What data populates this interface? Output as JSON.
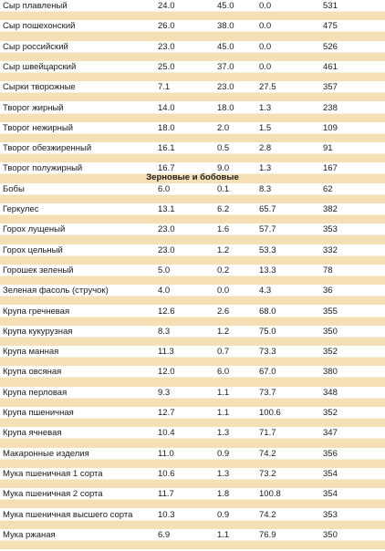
{
  "rows": [
    [
      "Сыр плавленый",
      "24.0",
      "45.0",
      "0.0",
      "531"
    ],
    [
      "Сыр пошехонский",
      "26.0",
      "38.0",
      "0.0",
      "475"
    ],
    [
      "Сыр российский",
      "23.0",
      "45.0",
      "0.0",
      "526"
    ],
    [
      "Сыр швейцарский",
      "25.0",
      "37.0",
      "0.0",
      "461"
    ],
    [
      "Сырки творожные",
      "7.1",
      "23.0",
      "27.5",
      "357"
    ],
    [
      "Творог жирный",
      "14.0",
      "18.0",
      "1.3",
      "238"
    ],
    [
      "Творог нежирный",
      "18.0",
      "2.0",
      "1.5",
      "109"
    ],
    [
      "Творог обезжиренный",
      "16.1",
      "0.5",
      "2.8",
      "91"
    ],
    [
      "Творог полужирный",
      "16.7",
      "9.0",
      "1.3",
      "167"
    ],
    [
      "Бобы",
      "6.0",
      "0.1",
      "8.3",
      "62"
    ],
    [
      "Геркулес",
      "13.1",
      "6.2",
      "65.7",
      "382"
    ],
    [
      "Горох лущеный",
      "23.0",
      "1.6",
      "57.7",
      "353"
    ],
    [
      "Горох цельный",
      "23.0",
      "1.2",
      "53.3",
      "332"
    ],
    [
      "Горошек зеленый",
      "5.0",
      "0.2",
      "13.3",
      "78"
    ],
    [
      "Зеленая фасоль (стручок)",
      "4.0",
      "0.0",
      "4.3",
      "36"
    ],
    [
      "Крупа гречневая",
      "12.6",
      "2.6",
      "68.0",
      "355"
    ],
    [
      "Крупа кукурузная",
      "8.3",
      "1.2",
      "75.0",
      "350"
    ],
    [
      "Крупа манная",
      "11.3",
      "0.7",
      "73.3",
      "352"
    ],
    [
      "Крупа овсяная",
      "12.0",
      "6.0",
      "67.0",
      "380"
    ],
    [
      "Крупа перловая",
      "9.3",
      "1.1",
      "73.7",
      "348"
    ],
    [
      "Крупа пшеничная",
      "12.7",
      "1.1",
      "100.6",
      "352"
    ],
    [
      "Крупа ячневая",
      "10.4",
      "1.3",
      "71.7",
      "347"
    ],
    [
      "Макаронные изделия",
      "11.0",
      "0.9",
      "74.2",
      "356"
    ],
    [
      "Мука пшеничная 1 сорта",
      "10.6",
      "1.3",
      "73.2",
      "354"
    ],
    [
      "Мука пшеничная 2 сорта",
      "11.7",
      "1.8",
      "100.8",
      "354"
    ],
    [
      "Мука пшеничная высшего сорта",
      "10.3",
      "0.9",
      "74.2",
      "353"
    ],
    [
      "Мука ржаная",
      "6.9",
      "1.1",
      "76.9",
      "350"
    ]
  ],
  "section_heading": "Зерновые и бобовые",
  "colors": {
    "stripe": "#f5e0b5",
    "background": "#ffffff",
    "text": "#1a1a1a"
  }
}
